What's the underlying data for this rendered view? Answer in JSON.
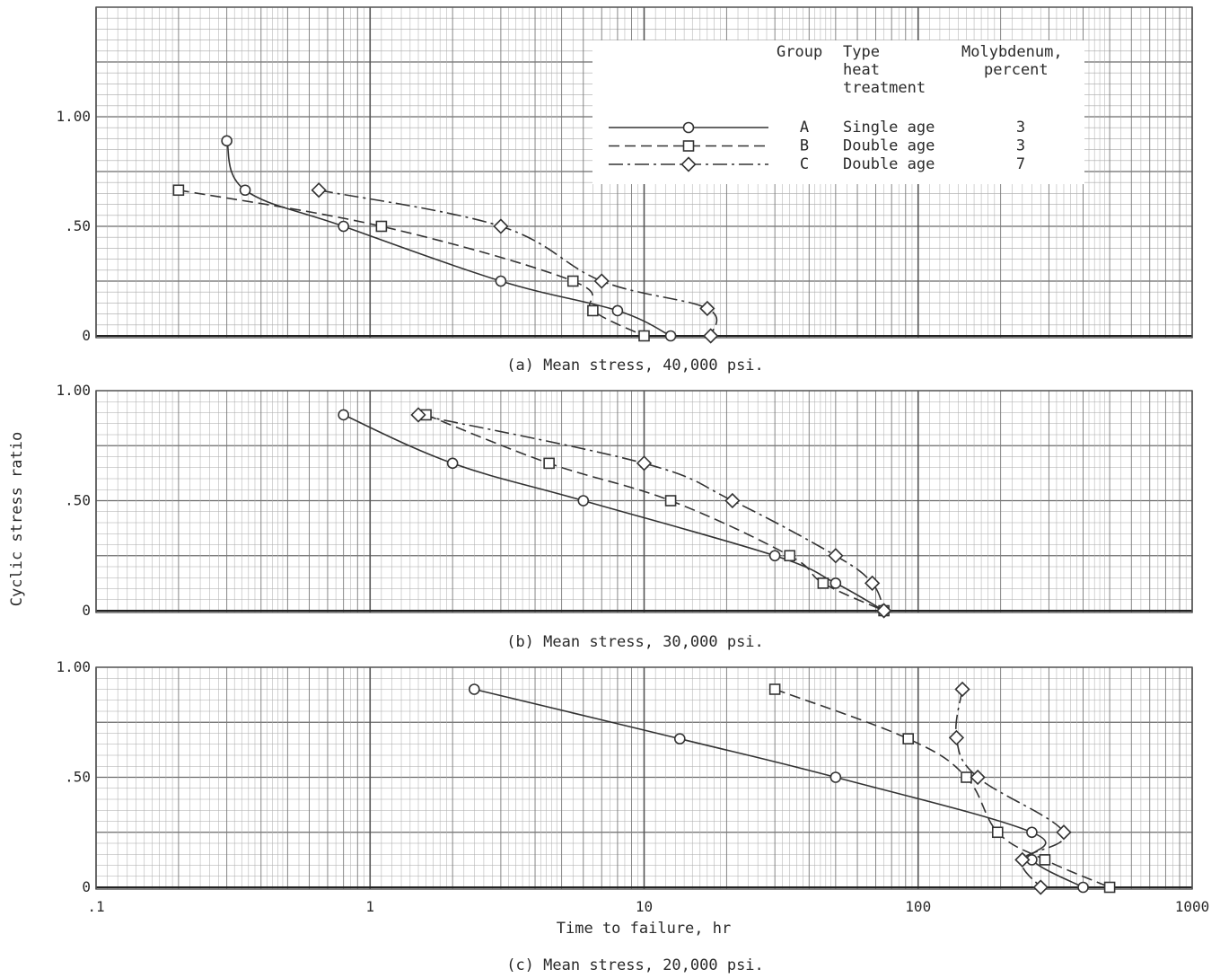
{
  "figure": {
    "ylabel": "Cyclic stress ratio",
    "xlabel": "Time to failure, hr",
    "x_ticks": [
      ".1",
      "1",
      "10",
      "100",
      "1000"
    ],
    "y_ticks": [
      "0",
      ".50",
      "1.00"
    ],
    "legend": {
      "headers": [
        "Group",
        "Type\nheat\ntreatment",
        "Molybdenum,\npercent"
      ],
      "rows": [
        {
          "group": "A",
          "type": "Single age",
          "moly": "3",
          "marker": "circle",
          "dash": "solid"
        },
        {
          "group": "B",
          "type": "Double age",
          "moly": "3",
          "marker": "square",
          "dash": "dashed"
        },
        {
          "group": "C",
          "type": "Double age",
          "moly": "7",
          "marker": "diamond",
          "dash": "dash-dot"
        }
      ]
    }
  },
  "chart_data": [
    {
      "type": "line",
      "title": "(a) Mean stress, 40,000 psi.",
      "xscale": "log",
      "xlim": [
        0.1,
        1000
      ],
      "ylim": [
        0,
        1.0
      ],
      "grid": true,
      "series": [
        {
          "name": "A",
          "points": [
            [
              0.3,
              0.89
            ],
            [
              0.35,
              0.665
            ],
            [
              0.8,
              0.5
            ],
            [
              3.0,
              0.25
            ],
            [
              8.0,
              0.115
            ],
            [
              12.5,
              0.0
            ]
          ]
        },
        {
          "name": "B",
          "points": [
            [
              0.2,
              0.665
            ],
            [
              1.1,
              0.5
            ],
            [
              5.5,
              0.25
            ],
            [
              6.5,
              0.115
            ],
            [
              10.0,
              0.0
            ]
          ]
        },
        {
          "name": "C",
          "points": [
            [
              0.65,
              0.665
            ],
            [
              3.0,
              0.5
            ],
            [
              7.0,
              0.25
            ],
            [
              17.0,
              0.125
            ],
            [
              17.5,
              0.0
            ]
          ]
        }
      ]
    },
    {
      "type": "line",
      "title": "(b) Mean stress, 30,000 psi.",
      "xscale": "log",
      "xlim": [
        0.1,
        1000
      ],
      "ylim": [
        0,
        1.0
      ],
      "grid": true,
      "series": [
        {
          "name": "A",
          "points": [
            [
              0.8,
              0.89
            ],
            [
              2.0,
              0.67
            ],
            [
              6.0,
              0.5
            ],
            [
              30.0,
              0.25
            ],
            [
              50.0,
              0.125
            ],
            [
              75.0,
              0.0
            ]
          ]
        },
        {
          "name": "B",
          "points": [
            [
              1.6,
              0.89
            ],
            [
              4.5,
              0.67
            ],
            [
              12.5,
              0.5
            ],
            [
              34.0,
              0.25
            ],
            [
              45.0,
              0.125
            ],
            [
              75.0,
              0.0
            ]
          ]
        },
        {
          "name": "C",
          "points": [
            [
              1.5,
              0.89
            ],
            [
              10.0,
              0.67
            ],
            [
              21.0,
              0.5
            ],
            [
              50.0,
              0.25
            ],
            [
              68.0,
              0.125
            ],
            [
              75.0,
              0.0
            ]
          ]
        }
      ]
    },
    {
      "type": "line",
      "title": "(c) Mean stress, 20,000 psi.",
      "xscale": "log",
      "xlim": [
        0.1,
        1000
      ],
      "ylim": [
        0,
        1.0
      ],
      "grid": true,
      "series": [
        {
          "name": "A",
          "points": [
            [
              2.4,
              0.9
            ],
            [
              13.5,
              0.675
            ],
            [
              50.0,
              0.5
            ],
            [
              260.0,
              0.25
            ],
            [
              260.0,
              0.125
            ],
            [
              400.0,
              0.0
            ]
          ]
        },
        {
          "name": "B",
          "points": [
            [
              30.0,
              0.9
            ],
            [
              92.0,
              0.675
            ],
            [
              150.0,
              0.5
            ],
            [
              195.0,
              0.25
            ],
            [
              290.0,
              0.125
            ],
            [
              500.0,
              0.0
            ]
          ]
        },
        {
          "name": "C",
          "points": [
            [
              145.0,
              0.9
            ],
            [
              138.0,
              0.68
            ],
            [
              165.0,
              0.5
            ],
            [
              340.0,
              0.25
            ],
            [
              240.0,
              0.125
            ],
            [
              280.0,
              0.0
            ]
          ]
        }
      ]
    }
  ]
}
